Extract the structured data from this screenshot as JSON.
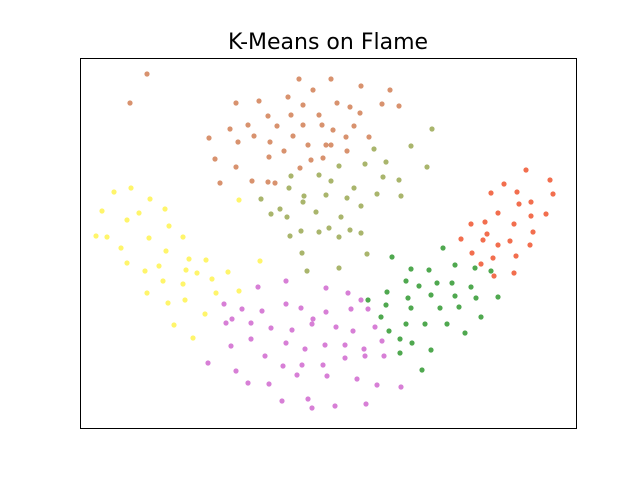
{
  "chart_data": {
    "type": "scatter",
    "title": "K-Means on Flame",
    "xlabel": "",
    "ylabel": "",
    "xlim": [
      80,
      576
    ],
    "ylim": [
      428,
      58
    ],
    "axes_ticks_visible": false,
    "grid": false,
    "legend": "none",
    "series": [
      {
        "color": "#d8926e",
        "points": [
          [
            147,
            74
          ],
          [
            130,
            103
          ],
          [
            299,
            79
          ],
          [
            331,
            79
          ],
          [
            361,
            86
          ],
          [
            390,
            90
          ],
          [
            313,
            90
          ],
          [
            236,
            103
          ],
          [
            259,
            101
          ],
          [
            288,
            97
          ],
          [
            337,
            103
          ],
          [
            382,
            104
          ],
          [
            399,
            106
          ],
          [
            303,
            105
          ],
          [
            350,
            107
          ],
          [
            268,
            116
          ],
          [
            291,
            115
          ],
          [
            319,
            115
          ],
          [
            360,
            113
          ],
          [
            322,
            125
          ],
          [
            248,
            125
          ],
          [
            209,
            138
          ],
          [
            230,
            129
          ],
          [
            277,
            126
          ],
          [
            303,
            125
          ],
          [
            333,
            130
          ],
          [
            254,
            136
          ],
          [
            293,
            136
          ],
          [
            326,
            145
          ],
          [
            238,
            142
          ],
          [
            270,
            142
          ],
          [
            346,
            137
          ],
          [
            354,
            126
          ],
          [
            369,
            137
          ],
          [
            308,
            145
          ],
          [
            331,
            145
          ],
          [
            347,
            151
          ],
          [
            284,
            151
          ],
          [
            215,
            159
          ],
          [
            269,
            157
          ],
          [
            323,
            158
          ],
          [
            311,
            160
          ],
          [
            236,
            167
          ],
          [
            300,
            168
          ],
          [
            252,
            181
          ],
          [
            268,
            182
          ],
          [
            220,
            183
          ],
          [
            275,
            183
          ]
        ]
      },
      {
        "color": "#a9b56c",
        "points": [
          [
            432,
            129
          ],
          [
            374,
            149
          ],
          [
            411,
            146
          ],
          [
            427,
            167
          ],
          [
            365,
            164
          ],
          [
            386,
            162
          ],
          [
            339,
            166
          ],
          [
            319,
            175
          ],
          [
            291,
            176
          ],
          [
            383,
            177
          ],
          [
            399,
            180
          ],
          [
            331,
            181
          ],
          [
            354,
            188
          ],
          [
            377,
            194
          ],
          [
            289,
            188
          ],
          [
            261,
            199
          ],
          [
            304,
            196
          ],
          [
            326,
            195
          ],
          [
            347,
            198
          ],
          [
            401,
            196
          ],
          [
            303,
            202
          ],
          [
            280,
            209
          ],
          [
            271,
            214
          ],
          [
            287,
            217
          ],
          [
            316,
            212
          ],
          [
            361,
            206
          ],
          [
            341,
            217
          ],
          [
            329,
            228
          ],
          [
            350,
            230
          ],
          [
            361,
            233
          ],
          [
            319,
            232
          ],
          [
            290,
            236
          ],
          [
            301,
            231
          ],
          [
            339,
            237
          ],
          [
            302,
            253
          ],
          [
            367,
            254
          ],
          [
            307,
            271
          ],
          [
            339,
            268
          ]
        ]
      },
      {
        "color": "#fff56b",
        "points": [
          [
            114,
            192
          ],
          [
            131,
            188
          ],
          [
            150,
            199
          ],
          [
            165,
            209
          ],
          [
            102,
            211
          ],
          [
            139,
            213
          ],
          [
            96,
            236
          ],
          [
            127,
            220
          ],
          [
            169,
            226
          ],
          [
            149,
            238
          ],
          [
            183,
            237
          ],
          [
            107,
            237
          ],
          [
            121,
            248
          ],
          [
            166,
            251
          ],
          [
            127,
            263
          ],
          [
            145,
            271
          ],
          [
            189,
            259
          ],
          [
            206,
            260
          ],
          [
            228,
            272
          ],
          [
            186,
            270
          ],
          [
            159,
            266
          ],
          [
            183,
            284
          ],
          [
            163,
            281
          ],
          [
            147,
            293
          ],
          [
            197,
            273
          ],
          [
            212,
            279
          ],
          [
            168,
            303
          ],
          [
            185,
            300
          ],
          [
            216,
            293
          ],
          [
            239,
            291
          ],
          [
            174,
            325
          ],
          [
            205,
            314
          ],
          [
            193,
            338
          ],
          [
            239,
            200
          ],
          [
            260,
            261
          ]
        ]
      },
      {
        "color": "#d77fd6",
        "points": [
          [
            286,
            281
          ],
          [
            258,
            287
          ],
          [
            326,
            288
          ],
          [
            224,
            304
          ],
          [
            242,
            309
          ],
          [
            262,
            311
          ],
          [
            232,
            319
          ],
          [
            226,
            323
          ],
          [
            251,
            323
          ],
          [
            271,
            328
          ],
          [
            286,
            304
          ],
          [
            301,
            308
          ],
          [
            326,
            312
          ],
          [
            351,
            309
          ],
          [
            368,
            309
          ],
          [
            348,
            293
          ],
          [
            361,
            300
          ],
          [
            313,
            319
          ],
          [
            336,
            327
          ],
          [
            353,
            331
          ],
          [
            375,
            327
          ],
          [
            382,
            341
          ],
          [
            292,
            330
          ],
          [
            312,
            324
          ],
          [
            286,
            343
          ],
          [
            305,
            349
          ],
          [
            325,
            345
          ],
          [
            345,
            345
          ],
          [
            364,
            349
          ],
          [
            251,
            339
          ],
          [
            231,
            346
          ],
          [
            265,
            356
          ],
          [
            283,
            366
          ],
          [
            302,
            365
          ],
          [
            323,
            365
          ],
          [
            345,
            358
          ],
          [
            365,
            356
          ],
          [
            384,
            356
          ],
          [
            208,
            363
          ],
          [
            236,
            371
          ],
          [
            248,
            383
          ],
          [
            269,
            384
          ],
          [
            297,
            375
          ],
          [
            327,
            376
          ],
          [
            357,
            379
          ],
          [
            377,
            385
          ],
          [
            401,
            387
          ],
          [
            282,
            401
          ],
          [
            308,
            399
          ],
          [
            335,
            406
          ],
          [
            366,
            404
          ],
          [
            312,
            408
          ]
        ]
      },
      {
        "color": "#4fa84f",
        "points": [
          [
            443,
            248
          ],
          [
            392,
            257
          ],
          [
            411,
            269
          ],
          [
            429,
            270
          ],
          [
            455,
            265
          ],
          [
            475,
            268
          ],
          [
            406,
            281
          ],
          [
            437,
            283
          ],
          [
            452,
            283
          ],
          [
            471,
            287
          ],
          [
            491,
            271
          ],
          [
            498,
            297
          ],
          [
            476,
            298
          ],
          [
            455,
            296
          ],
          [
            431,
            295
          ],
          [
            419,
            286
          ],
          [
            408,
            298
          ],
          [
            387,
            292
          ],
          [
            368,
            300
          ],
          [
            386,
            305
          ],
          [
            411,
            308
          ],
          [
            440,
            308
          ],
          [
            459,
            307
          ],
          [
            481,
            317
          ],
          [
            381,
            317
          ],
          [
            406,
            324
          ],
          [
            425,
            324
          ],
          [
            447,
            324
          ],
          [
            389,
            331
          ],
          [
            400,
            339
          ],
          [
            412,
            343
          ],
          [
            431,
            350
          ],
          [
            465,
            333
          ],
          [
            422,
            370
          ],
          [
            400,
            353
          ]
        ]
      },
      {
        "color": "#f26e4e",
        "points": [
          [
            526,
            170
          ],
          [
            550,
            180
          ],
          [
            553,
            194
          ],
          [
            504,
            184
          ],
          [
            517,
            192
          ],
          [
            491,
            193
          ],
          [
            531,
            202
          ],
          [
            519,
            204
          ],
          [
            546,
            214
          ],
          [
            498,
            213
          ],
          [
            485,
            222
          ],
          [
            531,
            216
          ],
          [
            487,
            234
          ],
          [
            514,
            224
          ],
          [
            471,
            224
          ],
          [
            461,
            239
          ],
          [
            483,
            240
          ],
          [
            498,
            245
          ],
          [
            510,
            241
          ],
          [
            533,
            232
          ],
          [
            530,
            245
          ],
          [
            472,
            253
          ],
          [
            493,
            258
          ],
          [
            516,
            256
          ],
          [
            481,
            264
          ],
          [
            514,
            273
          ],
          [
            494,
            276
          ]
        ]
      }
    ]
  }
}
